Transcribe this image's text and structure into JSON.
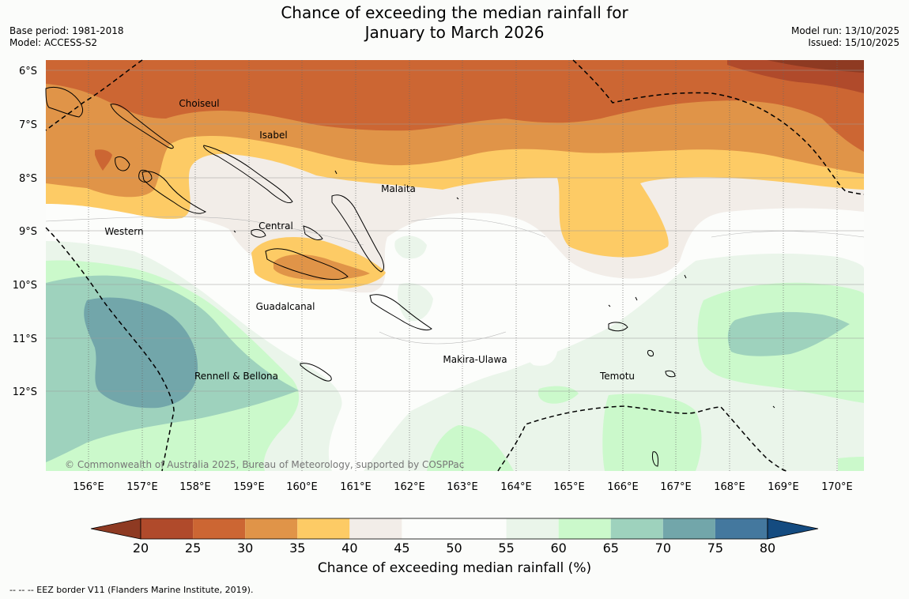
{
  "title": {
    "line1": "Chance of exceeding the median rainfall for",
    "line2": "January to March 2026"
  },
  "meta": {
    "base_period": "Base period: 1981-2018",
    "model": "Model: ACCESS-S2",
    "model_run": "Model run: 13/10/2025",
    "issued": "Issued: 15/10/2025"
  },
  "map": {
    "lat_labels": [
      "6°S",
      "7°S",
      "8°S",
      "9°S",
      "10°S",
      "11°S",
      "12°S"
    ],
    "lon_labels": [
      "156°E",
      "157°E",
      "158°E",
      "159°E",
      "160°E",
      "161°E",
      "162°E",
      "163°E",
      "164°E",
      "165°E",
      "166°E",
      "167°E",
      "168°E",
      "169°E",
      "170°E"
    ],
    "places": {
      "choiseul": "Choiseul",
      "isabel": "Isabel",
      "malaita": "Malaita",
      "western": "Western",
      "central": "Central",
      "guadalcanal": "Guadalcanal",
      "makira": "Makira-Ulawa",
      "temotu": "Temotu",
      "rennell": "Rennell & Bellona"
    },
    "copyright": "© Commonwealth of Australia 2025, Bureau of Meteorology, supported by COSPPac"
  },
  "colorbar": {
    "ticks": [
      "20",
      "25",
      "30",
      "35",
      "40",
      "45",
      "50",
      "55",
      "60",
      "65",
      "70",
      "75",
      "80"
    ],
    "colors": [
      "#8e3a22",
      "#b04a2b",
      "#cc6633",
      "#e09448",
      "#fdcb65",
      "#f2ede8",
      "#fcfdfb",
      "#fcfdfb",
      "#eaf5ea",
      "#cbf9cb",
      "#9ed2bd",
      "#72a6aa",
      "#44789e",
      "#144b80"
    ],
    "title": "Chance of exceeding median rainfall (%)"
  },
  "footnote": "--  --  -- EEZ border V11 (Flanders Marine Institute, 2019)."
}
